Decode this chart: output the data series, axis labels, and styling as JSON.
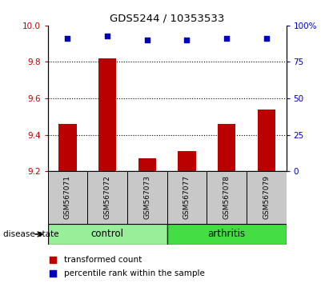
{
  "title": "GDS5244 / 10353533",
  "samples": [
    "GSM567071",
    "GSM567072",
    "GSM567073",
    "GSM567077",
    "GSM567078",
    "GSM567079"
  ],
  "bar_values": [
    9.46,
    9.82,
    9.27,
    9.31,
    9.46,
    9.54
  ],
  "dot_values": [
    91,
    93,
    90,
    90,
    91,
    91
  ],
  "ylim_left": [
    9.2,
    10.0
  ],
  "ylim_right": [
    0,
    100
  ],
  "yticks_left": [
    9.2,
    9.4,
    9.6,
    9.8,
    10.0
  ],
  "yticks_right": [
    0,
    25,
    50,
    75,
    100
  ],
  "bar_color": "#bb0000",
  "dot_color": "#0000bb",
  "bar_bottom": 9.2,
  "groups": [
    {
      "label": "control",
      "indices": [
        0,
        1,
        2
      ],
      "color": "#99ee99"
    },
    {
      "label": "arthritis",
      "indices": [
        3,
        4,
        5
      ],
      "color": "#44dd44"
    }
  ],
  "disease_state_label": "disease state",
  "legend_bar_label": "transformed count",
  "legend_dot_label": "percentile rank within the sample",
  "label_area_color": "#c8c8c8",
  "fig_width": 4.11,
  "fig_height": 3.54,
  "dpi": 100
}
